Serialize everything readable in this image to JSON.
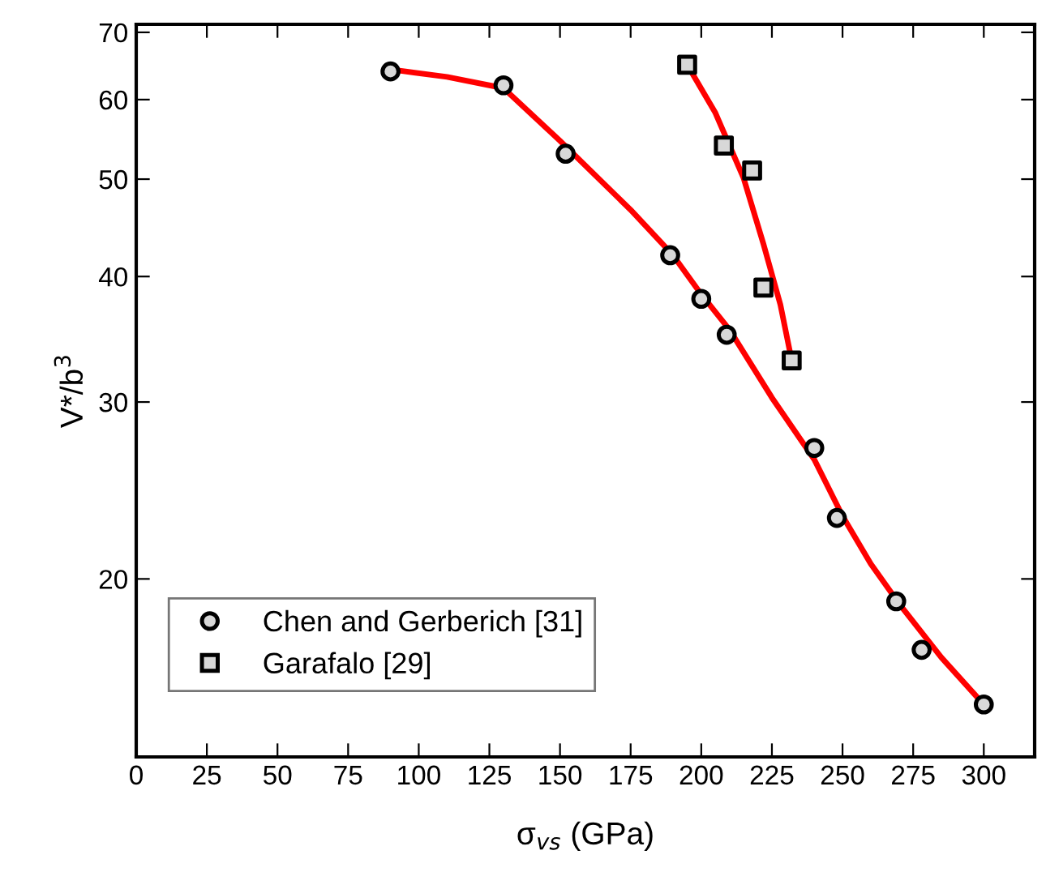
{
  "chart_data": {
    "type": "scatter",
    "xlabel": "σ$_{vs}$ (GPa)",
    "ylabel": "V*/b$^{3}$",
    "log": "y",
    "xlim": [
      0,
      318
    ],
    "ylim": [
      13.3,
      71.3
    ],
    "xticks": [
      0,
      25,
      50,
      75,
      100,
      125,
      150,
      175,
      200,
      225,
      250,
      275,
      300
    ],
    "yticks": [
      20,
      30,
      40,
      50,
      60,
      70
    ],
    "legend": "bottom left",
    "grid": false,
    "series": [
      {
        "name": "Chen and Gerberich [31]",
        "marker": "circle",
        "color": "#000000",
        "x": [
          90,
          130,
          152,
          189,
          200,
          209,
          240,
          248,
          269,
          278,
          300
        ],
        "values": [
          64,
          62,
          53,
          42,
          38,
          35,
          27,
          23,
          19,
          17,
          15
        ]
      },
      {
        "name": "Garafalo [29]",
        "marker": "square",
        "color": "#000000",
        "x": [
          195,
          208,
          218,
          222,
          232
        ],
        "values": [
          65,
          54,
          51,
          39,
          33
        ]
      },
      {
        "type": "line",
        "color": "#ff0000",
        "x": [
          90,
          110,
          130,
          150,
          175,
          190,
          200,
          210,
          225,
          240,
          250,
          260,
          270,
          285,
          300
        ],
        "values": [
          64.3,
          63.2,
          61.6,
          54.6,
          46.6,
          42,
          38.4,
          35.4,
          30.3,
          26.3,
          23.1,
          20.7,
          18.9,
          16.7,
          15
        ]
      },
      {
        "type": "line",
        "color": "#ff0000",
        "x": [
          195,
          205,
          215,
          222,
          228,
          232
        ],
        "values": [
          65,
          58.2,
          50.1,
          43.1,
          37.5,
          33
        ]
      }
    ]
  }
}
